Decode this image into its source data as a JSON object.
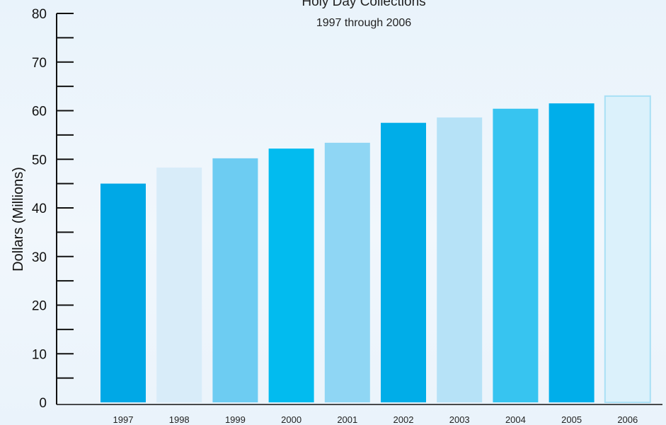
{
  "chart_data": {
    "type": "bar",
    "title": "Holy Day Collections",
    "subtitle": "1997 through 2006",
    "xlabel": "",
    "ylabel": "Dollars (Millions)",
    "ylim": [
      0,
      80
    ],
    "major_ticks": [
      0,
      10,
      20,
      30,
      40,
      50,
      60,
      70,
      80
    ],
    "categories": [
      "1997",
      "1998",
      "1999",
      "2000",
      "2001",
      "2002",
      "2003",
      "2004",
      "2005",
      "2006"
    ],
    "values": [
      45,
      48.3,
      50.2,
      52.2,
      53.4,
      57.5,
      58.6,
      60.4,
      61.5,
      63
    ],
    "colors": [
      "#00a8e6",
      "#d8ecf9",
      "#6dccf2",
      "#02bbef",
      "#8fd6f4",
      "#00ade8",
      "#b6e2f7",
      "#37c4f0",
      "#00aeea",
      "#dbf1fb"
    ],
    "last_bar_border": "#a9e0f5",
    "grid": false,
    "legend": "none"
  }
}
